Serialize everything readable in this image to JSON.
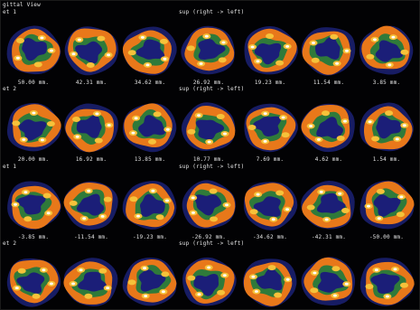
{
  "view_title": "gittal View",
  "header_text": "sup (right -> left)",
  "sets": [
    {
      "label": "et 1",
      "show_header": true,
      "slices": [
        "50.00 mm.",
        "42.31 mm.",
        "34.62 mm.",
        "26.92 mm.",
        "19.23 mm.",
        "11.54 mm.",
        "3.85 mm."
      ]
    },
    {
      "label": "et 2",
      "show_header": true,
      "slices": [
        "20.00 mm.",
        "16.92 mm.",
        "13.85 mm.",
        "10.77 mm.",
        "7.69 mm.",
        "4.62 mm.",
        "1.54 mm."
      ]
    },
    {
      "label": "et 1",
      "show_header": true,
      "slices": [
        "-3.85 mm.",
        "-11.54 mm.",
        "-19.23 mm.",
        "-26.92 mm.",
        "-34.62 mm.",
        "-42.31 mm.",
        "-50.00 mm."
      ]
    },
    {
      "label": "et 2",
      "show_header": true,
      "slices": []
    }
  ],
  "colors": {
    "background": "#020204",
    "outer_halo": "#1a1f6e",
    "cortex": "#e8781a",
    "hot": "#f6c23a",
    "peak": "#ffffff",
    "white_matter": "#1b1e78",
    "mid": "#2f7a3a"
  }
}
